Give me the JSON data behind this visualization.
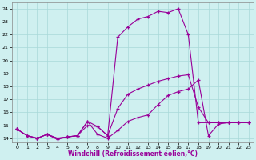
{
  "xlabel": "Windchill (Refroidissement éolien,°C)",
  "background_color": "#cff0f0",
  "grid_color": "#a8d8d8",
  "line_color": "#990099",
  "xlim": [
    -0.5,
    23.5
  ],
  "ylim": [
    13.7,
    24.5
  ],
  "yticks": [
    14,
    15,
    16,
    17,
    18,
    19,
    20,
    21,
    22,
    23,
    24
  ],
  "xticks": [
    0,
    1,
    2,
    3,
    4,
    5,
    6,
    7,
    8,
    9,
    10,
    11,
    12,
    13,
    14,
    15,
    16,
    17,
    18,
    19,
    20,
    21,
    22,
    23
  ],
  "series": [
    {
      "x": [
        0,
        1,
        2,
        3,
        4,
        5,
        6,
        7,
        8,
        9,
        10,
        11,
        12,
        13,
        14,
        15,
        16,
        17,
        18,
        19,
        20,
        21,
        22,
        23
      ],
      "y": [
        14.7,
        14.2,
        14.0,
        14.3,
        14.0,
        14.1,
        14.2,
        15.3,
        14.9,
        14.2,
        21.8,
        22.6,
        23.2,
        23.4,
        23.8,
        23.7,
        24.0,
        22.0,
        15.2,
        15.2,
        15.2,
        15.2,
        15.2,
        15.2
      ]
    },
    {
      "x": [
        0,
        1,
        2,
        3,
        4,
        5,
        6,
        7,
        8,
        9,
        10,
        11,
        12,
        13,
        14,
        15,
        16,
        17,
        18,
        19,
        20,
        21,
        22,
        23
      ],
      "y": [
        14.7,
        14.2,
        14.0,
        14.3,
        14.0,
        14.1,
        14.2,
        15.0,
        14.9,
        14.2,
        16.3,
        17.4,
        17.8,
        18.1,
        18.4,
        18.6,
        18.8,
        18.9,
        16.4,
        15.2,
        15.2,
        15.2,
        15.2,
        15.2
      ]
    },
    {
      "x": [
        0,
        1,
        2,
        3,
        4,
        5,
        6,
        7,
        8,
        9,
        10,
        11,
        12,
        13,
        14,
        15,
        16,
        17,
        18,
        19,
        20,
        21,
        22,
        23
      ],
      "y": [
        14.7,
        14.2,
        14.0,
        14.3,
        13.9,
        14.1,
        14.2,
        15.3,
        14.3,
        14.0,
        14.6,
        15.3,
        15.6,
        15.8,
        16.6,
        17.3,
        17.6,
        17.8,
        18.5,
        14.2,
        15.1,
        15.2,
        15.2,
        15.2
      ]
    }
  ]
}
